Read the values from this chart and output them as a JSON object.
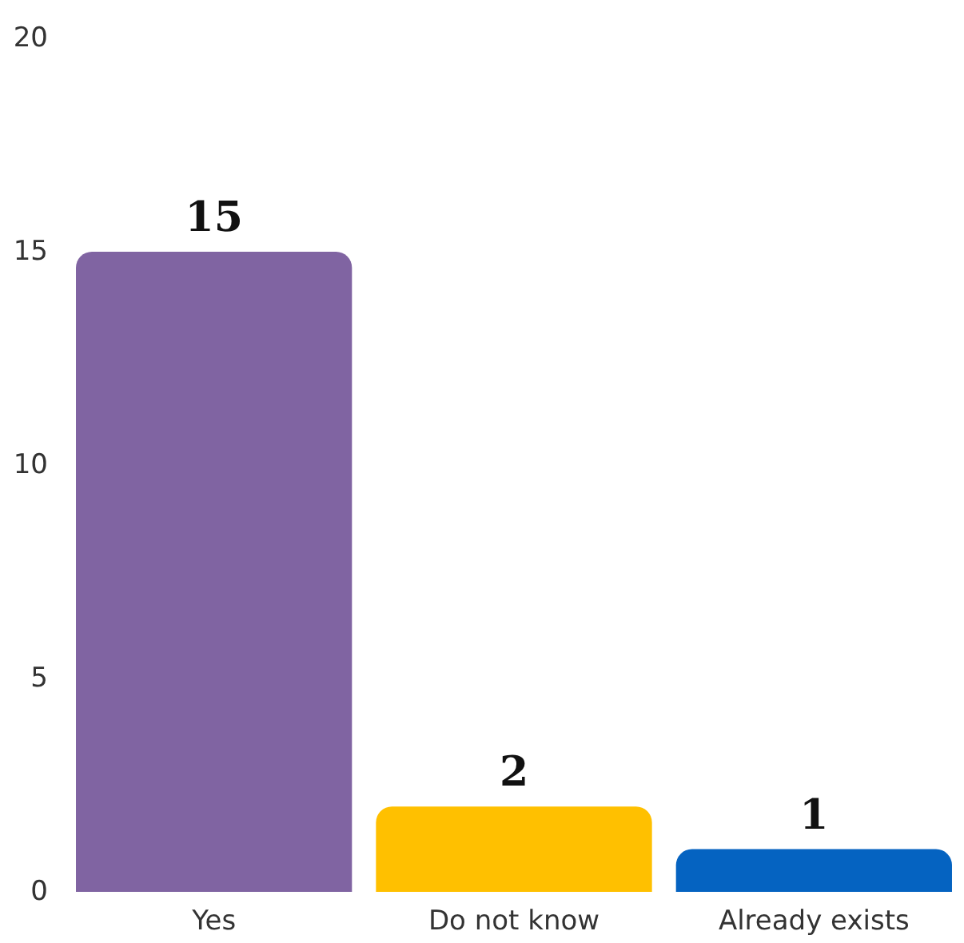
{
  "chart_data": {
    "type": "bar",
    "categories": [
      "Yes",
      "Do not know",
      "Already exists"
    ],
    "values": [
      15,
      2,
      1
    ],
    "colors": [
      "#8064a2",
      "#ffc000",
      "#0563c1"
    ],
    "ylim": [
      0,
      20
    ],
    "yticks": [
      0,
      5,
      10,
      15,
      20
    ],
    "data_labels": true
  }
}
